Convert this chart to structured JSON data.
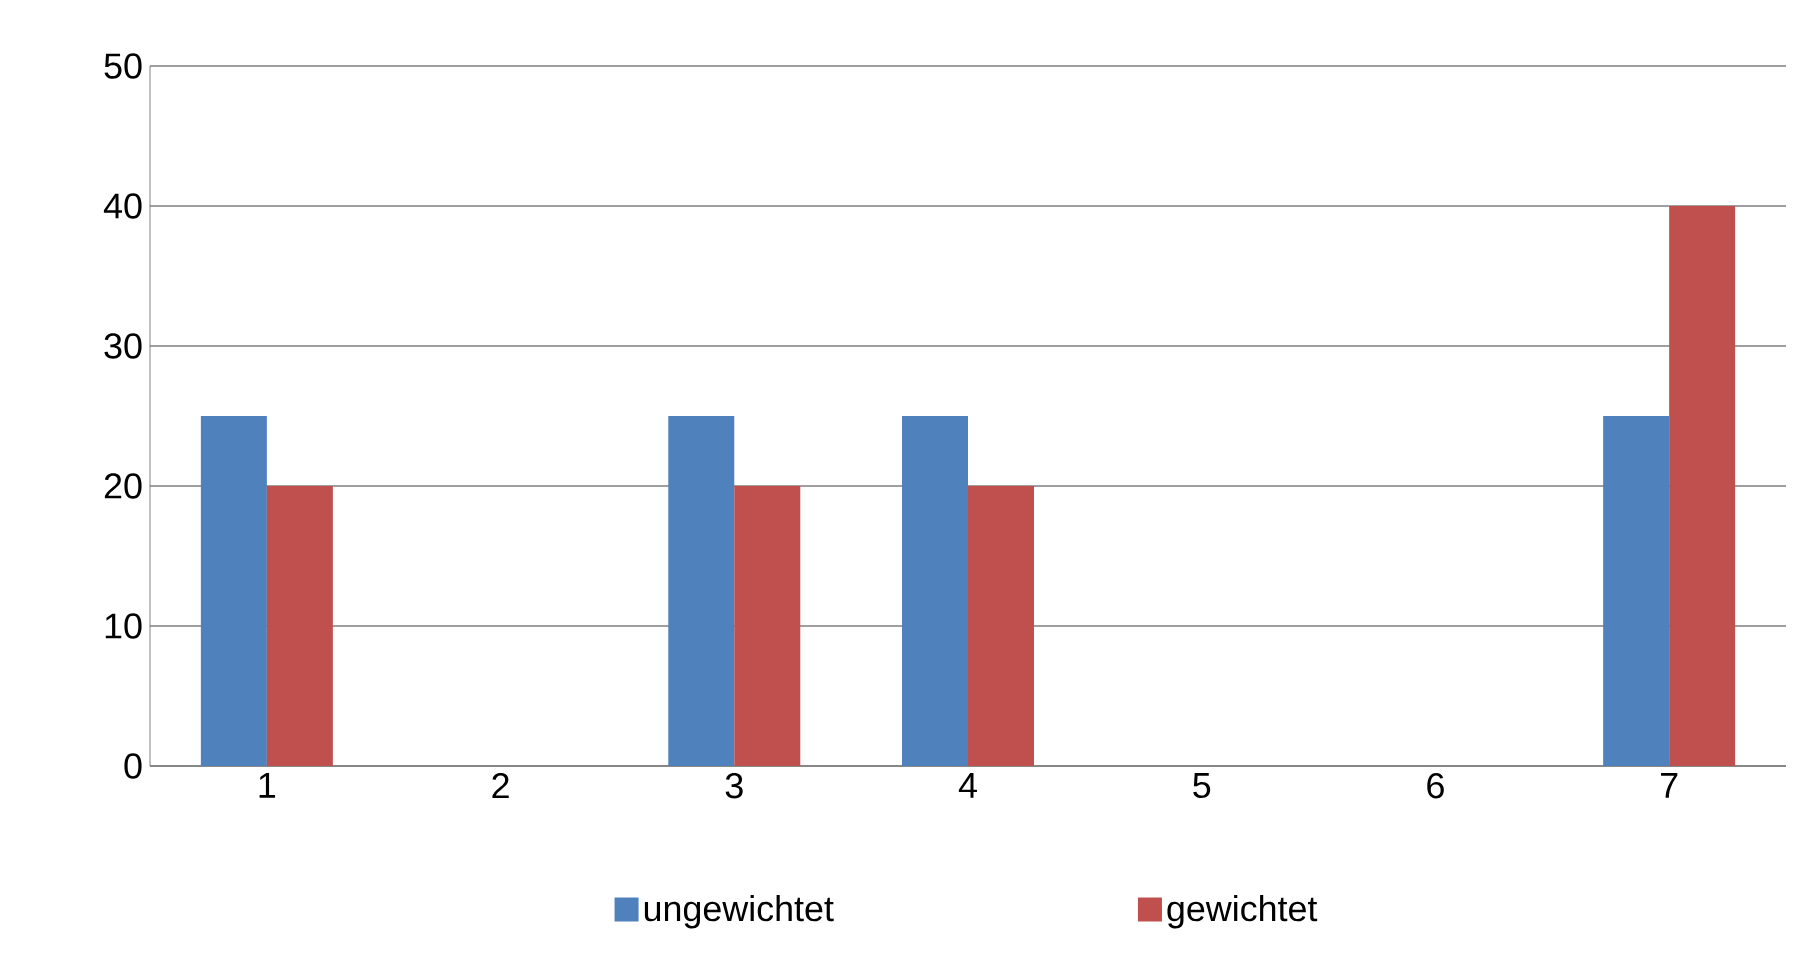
{
  "chart_data": {
    "type": "bar",
    "categories": [
      "1",
      "2",
      "3",
      "4",
      "5",
      "6",
      "7"
    ],
    "series": [
      {
        "name": "ungewichtet",
        "color": "#4f81bd",
        "values": [
          25,
          0,
          25,
          25,
          0,
          0,
          25
        ]
      },
      {
        "name": "gewichtet",
        "color": "#c0504d",
        "values": [
          20,
          0,
          20,
          20,
          0,
          0,
          40
        ]
      }
    ],
    "ylim": [
      0,
      50
    ],
    "yticks": [
      0,
      10,
      20,
      30,
      40,
      50
    ],
    "grid": "y",
    "legend": "bottom"
  }
}
